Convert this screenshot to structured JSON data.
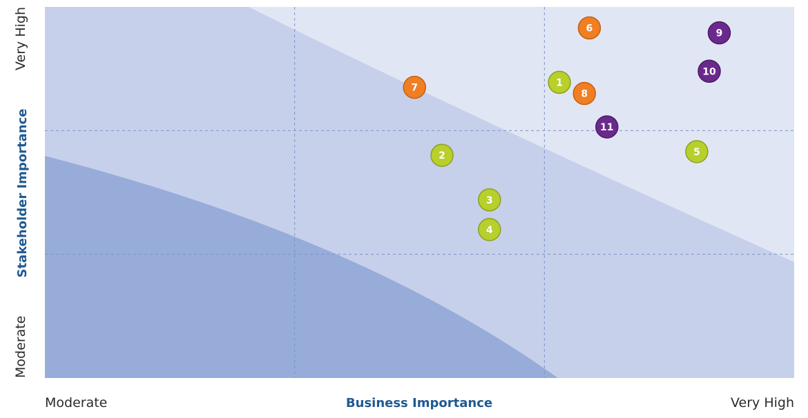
{
  "colors": {
    "zone_outer": "#e1e6f4",
    "zone_middle": "#c6d0ea",
    "zone_inner": "#97acd8",
    "gridline": "#7a92c8",
    "tick_text": "#2b2b2b",
    "axis_title": "#1f5a92",
    "point_green": "#b8cf2c",
    "point_green_stroke": "#8aa11f",
    "point_orange": "#f07f23",
    "point_orange_stroke": "#c45f12",
    "point_purple": "#6a2a8c",
    "point_purple_stroke": "#4a1a63",
    "point_text": "#ffffff"
  },
  "chart_data": {
    "type": "scatter",
    "title": "",
    "xlabel": "Business Importance",
    "ylabel": "Stakeholder Importance",
    "x_ticks": [
      {
        "value": 0,
        "label": "Moderate"
      },
      {
        "value": 3,
        "label": "Very High"
      }
    ],
    "y_ticks": [
      {
        "value": 0,
        "label": "Moderate"
      },
      {
        "value": 3,
        "label": "Very High"
      }
    ],
    "xlim": [
      0,
      3
    ],
    "ylim": [
      0,
      3
    ],
    "grid": true,
    "legend": "none",
    "series": [
      {
        "color_key": "green",
        "points": [
          {
            "label": "1",
            "x": 2.06,
            "y": 2.39
          },
          {
            "label": "2",
            "x": 1.59,
            "y": 1.8
          },
          {
            "label": "3",
            "x": 1.78,
            "y": 1.44
          },
          {
            "label": "4",
            "x": 1.78,
            "y": 1.2
          },
          {
            "label": "5",
            "x": 2.61,
            "y": 1.83
          }
        ]
      },
      {
        "color_key": "orange",
        "points": [
          {
            "label": "6",
            "x": 2.18,
            "y": 2.83
          },
          {
            "label": "7",
            "x": 1.48,
            "y": 2.35
          },
          {
            "label": "8",
            "x": 2.16,
            "y": 2.3
          }
        ]
      },
      {
        "color_key": "purple",
        "points": [
          {
            "label": "9",
            "x": 2.7,
            "y": 2.79
          },
          {
            "label": "10",
            "x": 2.66,
            "y": 2.48
          },
          {
            "label": "11",
            "x": 2.25,
            "y": 2.03
          }
        ]
      }
    ]
  }
}
